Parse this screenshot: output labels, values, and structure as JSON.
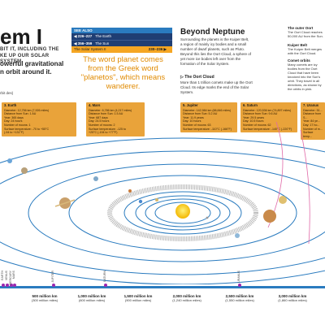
{
  "title": "em I",
  "title_sub": "BIT IT, INCLUDING THE KE UP OUR SOLAR SYSTEM.",
  "intro": "owerful gravitational n orbit around it.",
  "intro_small": "rbit des)",
  "see_also": {
    "header": "SEE ALSO",
    "rows": [
      {
        "ref": "◀ 226–227",
        "label": "The Earth"
      },
      {
        "ref": "◀ 356–359",
        "label": "The Sun"
      },
      {
        "ref": "",
        "label": "The Solar System II",
        "ref_right": "230–236 ▶"
      }
    ]
  },
  "quote": "The word planet comes from the Greek word \"planetos\", which means wanderer.",
  "beyond": {
    "title": "Beyond Neptune",
    "text": "Surrounding the planets is the Kuiper Belt, a region of mainly icy bodies and a small number of dwarf planets, such as Pluto. Beyond this lies the Oort Cloud, a sphere of yet more ice bodies left over from the formation of the Solar System.",
    "oort_title": "▷ The Oort Cloud",
    "oort_text": "More than 1 trillion comets make up the Oort Cloud. Its edge marks the end of the Solar System."
  },
  "side": {
    "outer_title": "The outer Oort",
    "outer_text": "The Oort Cloud reaches 50,000 AU from the Sun.",
    "kuiper_title": "Kuiper Belt",
    "kuiper_text": "The Kuiper Belt merges with the Oort Cloud.",
    "comet_title": "Comet orbits",
    "comet_text": "Many comets are icy bodies from the Oort Cloud that have been knocked into the Sun's orbit. They travel in all directions, as shown by the orbits in pink."
  },
  "facts": [
    {
      "title": "3. Earth",
      "lines": [
        "Diameter: 12,756 km (7,926 miles)",
        "Distance from Sun: 1 AU",
        "Year: 365 days",
        "Day: 24 hours",
        "Number of moons: 1",
        "Surface temperature: -70 to +55°C",
        "(-94 to +131°F)"
      ]
    },
    {
      "title": "4. Mars",
      "lines": [
        "Diameter: 6,786 km (4,217 miles)",
        "Distance from Sun: 1.5 AU",
        "Year: 687 days",
        "Day: 24.5 hours",
        "Number of moons: 2",
        "Surface temperature: -125 to",
        "+25°C (-194 to +77°F)"
      ]
    },
    {
      "title": "5. Jupiter",
      "lines": [
        "Diameter: 142,984 km (88,846 miles)",
        "Distance from Sun: 5.2 AU",
        "Year: 11.9 years",
        "Day: 10 hours",
        "Number of moons: 63",
        "Surface temperature: -110°C (-166°F)"
      ]
    },
    {
      "title": "6. Saturn",
      "lines": [
        "Diameter: 120,536 km (74,897 miles)",
        "Distance from Sun: 9.6 AU",
        "Year: 29.5 years",
        "Day: 10.5 hours",
        "Number of moons: 62",
        "Surface temperature: -140°C (-220°F)"
      ]
    },
    {
      "title": "7. Uranus",
      "lines": [
        "Diameter: 51...",
        "Distance from S...",
        "Year: 84 ye...",
        "Day: 17 ho...",
        "Number of m...",
        "Surface temp..."
      ]
    }
  ],
  "scale": {
    "ticks": [
      {
        "km": "500 million km",
        "miles": "(300 million miles)"
      },
      {
        "km": "1,000 million km",
        "miles": "(600 million miles)"
      },
      {
        "km": "1,500 million km",
        "miles": "(900 million miles)"
      },
      {
        "km": "2,000 million km",
        "miles": "(1,240 million miles)"
      },
      {
        "km": "2,500 million km",
        "miles": "(1,550 million miles)"
      },
      {
        "km": "3,000 million km",
        "miles": "(1,860 million miles)"
      }
    ],
    "planet_names": [
      "EARTH",
      "VENUS",
      "MERCURY",
      "MARS",
      "JUPITER",
      "SATURN",
      "URANUS"
    ]
  },
  "colors": {
    "accent_orange": "#e9a33a",
    "accent_blue": "#2a7bbf",
    "orbit_blue": "#2a7bbf",
    "sun_yellow": "#f2c200"
  }
}
